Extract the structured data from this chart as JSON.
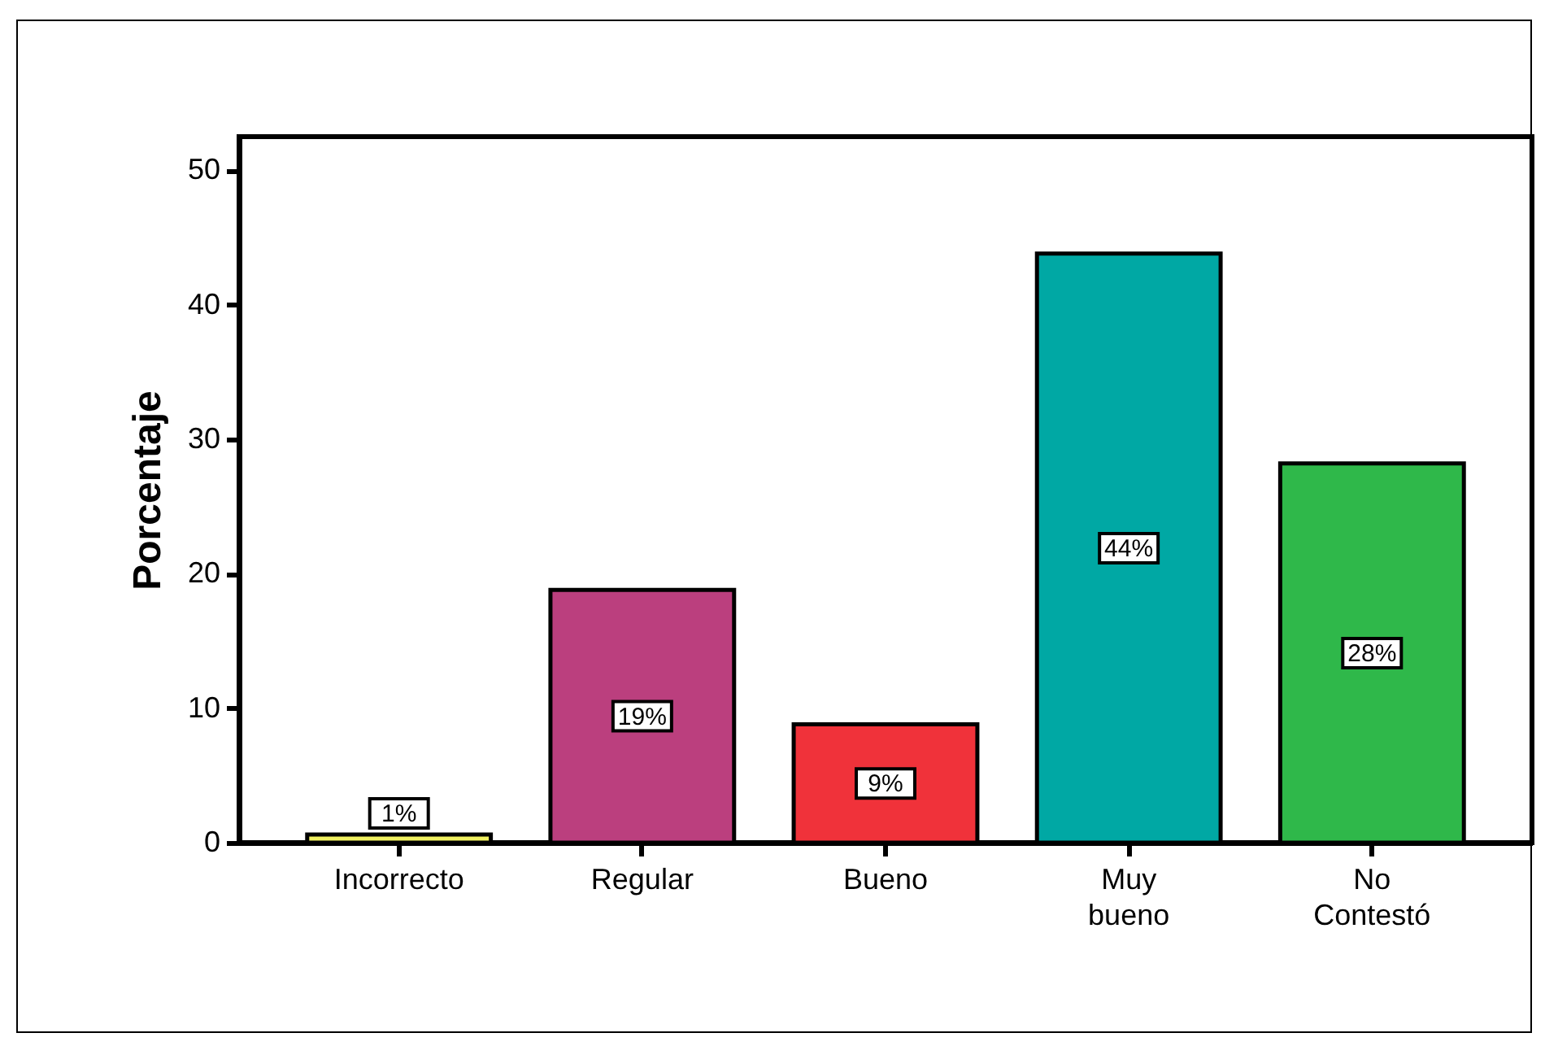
{
  "chart_data": {
    "type": "bar",
    "ylabel": "Porcentaje",
    "categories": [
      "Incorrecto",
      "Regular",
      "Bueno",
      "Muy bueno",
      "No Contestó"
    ],
    "values": [
      0.6,
      18.8,
      8.8,
      43.8,
      28.2
    ],
    "colors": [
      "#f0f060",
      "#bb3f7e",
      "#f0323a",
      "#00a8a4",
      "#2fb84a"
    ],
    "value_labels": [
      "1%",
      "19%",
      "9%",
      "44%",
      "28%"
    ],
    "ylim": [
      0,
      52.5
    ],
    "yticks": [
      0,
      10,
      20,
      30,
      40,
      50
    ],
    "grid": false,
    "legend": false
  }
}
